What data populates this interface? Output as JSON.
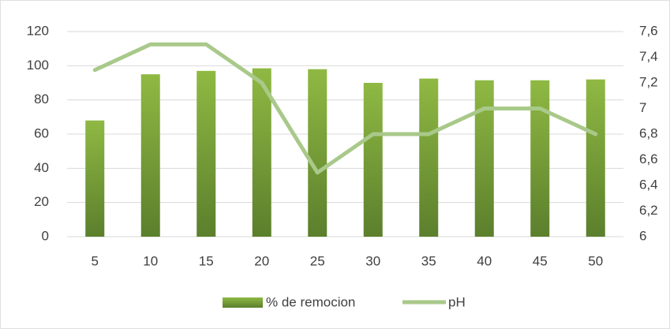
{
  "chart_data": {
    "type": "bar",
    "categories": [
      "5",
      "10",
      "15",
      "20",
      "25",
      "30",
      "35",
      "40",
      "45",
      "50"
    ],
    "series": [
      {
        "name": "% de remocion",
        "type": "bar",
        "color": "#76a03a",
        "values": [
          68,
          95,
          97,
          98.5,
          98,
          90,
          92.5,
          91.5,
          91.5,
          92
        ]
      },
      {
        "name": "pH",
        "type": "line",
        "axis": "y2",
        "color": "#a9c98a",
        "values": [
          7.3,
          7.5,
          7.5,
          7.2,
          6.5,
          6.8,
          6.8,
          7.0,
          7.0,
          6.8
        ]
      }
    ],
    "ylim": [
      0,
      120
    ],
    "yticks": [
      0,
      20,
      40,
      60,
      80,
      100,
      120
    ],
    "y2lim": [
      6,
      7.6
    ],
    "y2ticks": [
      6,
      {
        "value": 6.2,
        "label": "6,2"
      },
      {
        "value": 6.4,
        "label": "6,4"
      },
      {
        "value": 6.6,
        "label": "6,6"
      },
      {
        "value": 6.8,
        "label": "6,8"
      },
      7,
      {
        "value": 7.2,
        "label": "7,2"
      },
      {
        "value": 7.4,
        "label": "7,4"
      },
      {
        "value": 7.6,
        "label": "7,6"
      }
    ],
    "grid": true,
    "legend": "bottom"
  }
}
